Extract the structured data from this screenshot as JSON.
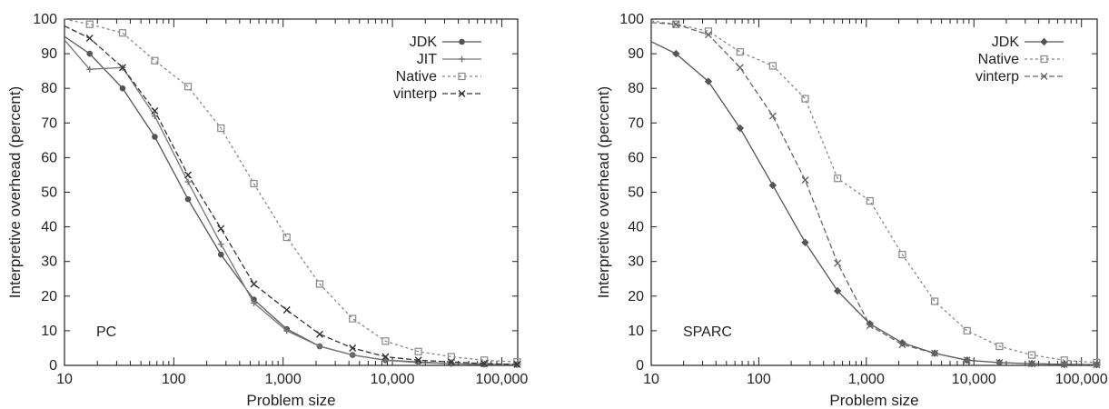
{
  "chart_data": [
    {
      "type": "line",
      "panel_label": "PC",
      "xlabel": "Problem size",
      "ylabel": "Interpretive overhead (percent)",
      "xscale": "log",
      "xlim": [
        10,
        140000
      ],
      "ylim": [
        0,
        100
      ],
      "xticks": [
        10,
        100,
        1000,
        10000,
        100000
      ],
      "xtick_labels": [
        "10",
        "100",
        "1,000",
        "10,000",
        "100,000"
      ],
      "yticks": [
        0,
        10,
        20,
        30,
        40,
        50,
        60,
        70,
        80,
        90,
        100
      ],
      "ytick_labels": [
        "0",
        "10",
        "20",
        "30",
        "40",
        "50",
        "60",
        "70",
        "80",
        "90",
        "100"
      ],
      "legend_position": "top-right",
      "series": [
        {
          "name": "JDK",
          "marker": "dot",
          "color": "#555555",
          "dash": "",
          "x": [
            10,
            17,
            34,
            67,
            135,
            270,
            540,
            1080,
            2160,
            4320,
            8640,
            17280,
            34560,
            69120,
            138240
          ],
          "y": [
            95,
            90,
            80,
            66,
            48,
            32,
            19,
            10.5,
            5.5,
            3,
            1.5,
            1,
            0.5,
            0.3,
            0.2
          ]
        },
        {
          "name": "JIT",
          "marker": "plus",
          "color": "#777777",
          "dash": "",
          "x": [
            10,
            17,
            34,
            67,
            135,
            270,
            540,
            1080,
            2160,
            4320,
            8640,
            17280,
            34560,
            69120,
            138240
          ],
          "y": [
            94,
            85.5,
            86,
            72,
            53,
            35,
            18,
            10,
            5.5,
            3,
            1.5,
            0.8,
            0.5,
            0.3,
            0.2
          ]
        },
        {
          "name": "Native",
          "marker": "square",
          "color": "#888888",
          "dash": "3,3",
          "x": [
            10,
            17,
            34,
            67,
            135,
            270,
            540,
            1080,
            2160,
            4320,
            8640,
            17280,
            34560,
            69120,
            138240
          ],
          "y": [
            100,
            98.5,
            96,
            88,
            80.5,
            68.5,
            52.5,
            37,
            23.5,
            13.5,
            7,
            4,
            2.5,
            1.5,
            1
          ]
        },
        {
          "name": "vinterp",
          "marker": "x",
          "color": "#333333",
          "dash": "6,3",
          "x": [
            10,
            17,
            34,
            67,
            135,
            270,
            540,
            1080,
            2160,
            4320,
            8640,
            17280,
            34560,
            69120,
            138240
          ],
          "y": [
            98,
            94.5,
            86,
            73.5,
            55,
            39.5,
            23.5,
            16,
            9,
            5,
            2.5,
            1.5,
            1,
            0.5,
            0.3
          ]
        }
      ]
    },
    {
      "type": "line",
      "panel_label": "SPARC",
      "xlabel": "Problem size",
      "ylabel": "Interpretive overhead (percent)",
      "xscale": "log",
      "xlim": [
        10,
        140000
      ],
      "ylim": [
        0,
        100
      ],
      "xticks": [
        10,
        100,
        1000,
        10000,
        100000
      ],
      "xtick_labels": [
        "10",
        "100",
        "1,000",
        "10,000",
        "100,000"
      ],
      "yticks": [
        0,
        10,
        20,
        30,
        40,
        50,
        60,
        70,
        80,
        90,
        100
      ],
      "ytick_labels": [
        "0",
        "10",
        "20",
        "30",
        "40",
        "50",
        "60",
        "70",
        "80",
        "90",
        "100"
      ],
      "legend_position": "top-right",
      "series": [
        {
          "name": "JDK",
          "marker": "diamond",
          "color": "#555555",
          "dash": "",
          "x": [
            10,
            17,
            34,
            67,
            135,
            270,
            540,
            1080,
            2160,
            4320,
            8640,
            17280,
            34560,
            69120,
            138240
          ],
          "y": [
            93.5,
            90,
            82,
            68.5,
            52,
            35.5,
            21.5,
            12,
            6.5,
            3.5,
            1.5,
            0.8,
            0.5,
            0.3,
            0.2
          ]
        },
        {
          "name": "Native",
          "marker": "square",
          "color": "#888888",
          "dash": "3,3",
          "x": [
            10,
            17,
            34,
            67,
            135,
            270,
            540,
            1080,
            2160,
            4320,
            8640,
            17280,
            34560,
            69120,
            138240
          ],
          "y": [
            99.5,
            98.5,
            96.5,
            90.5,
            86.5,
            77,
            54,
            47.5,
            32,
            18.5,
            10,
            5.5,
            3,
            1.5,
            0.8
          ]
        },
        {
          "name": "vinterp",
          "marker": "x",
          "color": "#666666",
          "dash": "6,3",
          "x": [
            10,
            17,
            34,
            67,
            135,
            270,
            540,
            1080,
            2160,
            4320,
            8640,
            17280,
            34560,
            69120,
            138240
          ],
          "y": [
            99,
            98.5,
            95.5,
            86,
            72,
            53.5,
            29.5,
            11.5,
            6,
            3.5,
            1.5,
            0.8,
            0.5,
            0.3,
            0.2
          ]
        }
      ]
    }
  ]
}
